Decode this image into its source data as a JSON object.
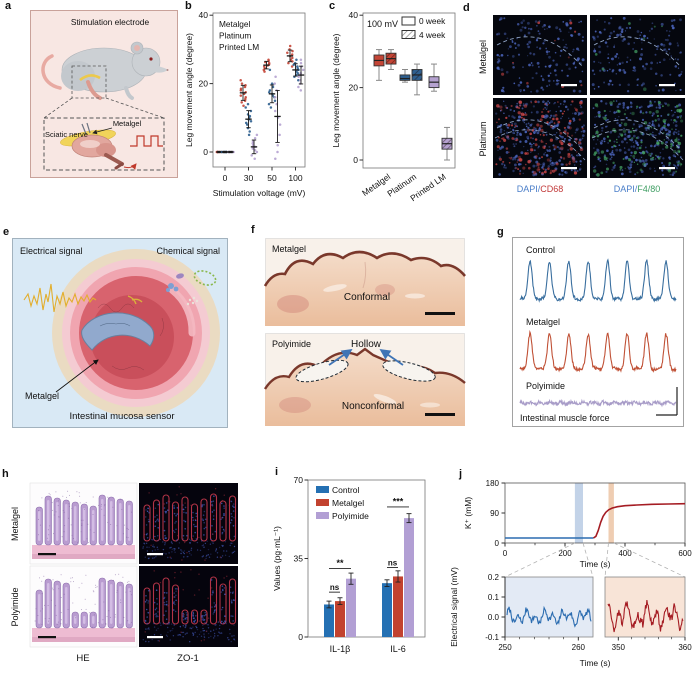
{
  "panel_letters": {
    "a": "a",
    "b": "b",
    "c": "c",
    "d": "d",
    "e": "e",
    "f": "f",
    "g": "g",
    "h": "h",
    "i": "i",
    "j": "j"
  },
  "panels": {
    "a": {
      "title": "Stimulation electrode",
      "metalgel": "Metalgel",
      "nerve": "Sciatic nerve"
    },
    "d": {
      "rows": [
        "Metalgel",
        "Platinum"
      ],
      "cap1_prefix": "DAPI/",
      "cap1_marker": "CD68",
      "cap2_prefix": "DAPI/",
      "cap2_marker": "F4/80",
      "dapi_color": "#4a7ec9",
      "cd68_color": "#c23a3a",
      "f480_color": "#3f9e63"
    },
    "e": {
      "electrical": "Electrical signal",
      "chemical": "Chemical signal",
      "metalgel": "Metalgel",
      "caption": "Intestinal mucosa sensor"
    },
    "f": {
      "top_label": "Metalgel",
      "top_caption": "Conformal",
      "bottom_label": "Polyimide",
      "hollow": "Hollow",
      "bottom_caption": "Nonconformal"
    },
    "g": {
      "caption": "Intestinal muscle force"
    },
    "h": {
      "rows": [
        "Metalgel",
        "Polyimide"
      ],
      "col1": "HE",
      "col2": "ZO-1",
      "col2_color": "#c23a3a"
    }
  },
  "chart_data": {
    "b": {
      "type": "scatter",
      "xlabel": "Stimulation voltage (mV)",
      "ylabel": "Leg movement angle (degree)",
      "x_categories": [
        0,
        30,
        50,
        100
      ],
      "y_ticks": [
        0,
        20,
        40
      ],
      "ylim": [
        -4,
        40
      ],
      "legend_position": "top-left",
      "series": [
        {
          "name": "Metalgel",
          "color": "#c44536",
          "points": [
            [
              0,
              0,
              0,
              0,
              0,
              0
            ],
            [
              13.5,
              14.5,
              15,
              15.5,
              16,
              16.5,
              17,
              17.5,
              18,
              18.5,
              19,
              19.5,
              20,
              21
            ],
            [
              23.5,
              24,
              24.5,
              25,
              25.3,
              25.6,
              26,
              26.3,
              26.6,
              27
            ],
            [
              25,
              26,
              26.5,
              27,
              27.5,
              28,
              28.5,
              29,
              29.5,
              30,
              31
            ]
          ],
          "mean": [
            0,
            17.3,
            25.4,
            28.1
          ],
          "sd": [
            0.2,
            2.2,
            1.1,
            1.7
          ]
        },
        {
          "name": "Platinum",
          "color": "#2e5f8f",
          "points": [
            [
              0,
              0,
              0,
              0,
              0,
              0
            ],
            [
              5,
              6,
              7,
              8,
              8.5,
              9,
              9.5,
              10,
              10.5,
              11,
              12,
              13,
              14
            ],
            [
              13,
              14,
              15,
              16,
              16.5,
              17,
              17.5,
              18,
              19,
              20,
              24
            ],
            [
              21,
              22,
              22.5,
              23,
              23.5,
              24,
              24.5,
              25,
              25.5,
              26,
              27
            ]
          ],
          "mean": [
            0,
            9.6,
            17,
            24
          ],
          "sd": [
            0.2,
            2.5,
            2.6,
            1.8
          ]
        },
        {
          "name": "Printed LM",
          "color": "#b5a2d0",
          "points": [
            [
              0,
              0,
              0,
              0,
              0,
              0
            ],
            [
              -2,
              -1,
              0,
              0.5,
              1,
              1.5,
              2,
              2.5,
              3,
              4,
              5
            ],
            [
              -2,
              0,
              2,
              5,
              8,
              10,
              12,
              14,
              16,
              18,
              20,
              22
            ],
            [
              18,
              19,
              20,
              21,
              22,
              22.5,
              23,
              24,
              25,
              26,
              27
            ]
          ],
          "mean": [
            0,
            1.5,
            10.4,
            22.5
          ],
          "sd": [
            0.2,
            2,
            7.6,
            2.6
          ]
        }
      ]
    },
    "c": {
      "type": "box",
      "annotation": "100 mV",
      "ylabel": "Leg movement angle (degree)",
      "y_ticks": [
        0,
        20,
        40
      ],
      "ylim": [
        -2,
        40
      ],
      "legend": [
        "0 week",
        "4 week"
      ],
      "categories": [
        "Metalgel",
        "Platinum",
        "Printed LM"
      ],
      "colors": [
        "#c44536",
        "#2e5f8f",
        "#b5a2d0"
      ],
      "week0": [
        [
          22,
          26,
          27.5,
          29,
          30.5
        ],
        [
          21.5,
          22,
          22.5,
          23.5,
          25
        ],
        [
          19,
          20,
          21.5,
          23,
          26.5
        ]
      ],
      "week4": [
        [
          25,
          26.5,
          28,
          29.5,
          30.5
        ],
        [
          18,
          22,
          23.5,
          25,
          26.5
        ],
        [
          0,
          3,
          4.5,
          6,
          9
        ]
      ]
    },
    "g": {
      "type": "traces",
      "traces": [
        {
          "name": "Control",
          "color": "#3a6f9f",
          "peaks": 8,
          "peak_h": 38,
          "noise": 1.6
        },
        {
          "name": "Metalgel",
          "color": "#c05136",
          "peaks": 8,
          "peak_h": 35,
          "noise": 1.6
        },
        {
          "name": "Polyimide",
          "color": "#a89cc8",
          "peaks": 0,
          "peak_h": 0,
          "noise": 1.8
        }
      ]
    },
    "i": {
      "type": "bar",
      "ylabel": "Values (pg·mL⁻¹)",
      "y_ticks": [
        0,
        35,
        70
      ],
      "ylim": [
        0,
        70
      ],
      "categories": [
        "IL-1β",
        "IL-6"
      ],
      "series": [
        {
          "name": "Control",
          "color": "#2470b3",
          "values": [
            14.5,
            24
          ],
          "errors": [
            1.5,
            1.5
          ]
        },
        {
          "name": "Metalgel",
          "color": "#c2422f",
          "values": [
            16,
            27
          ],
          "errors": [
            1.5,
            2.5
          ]
        },
        {
          "name": "Polyimide",
          "color": "#b29fd4",
          "values": [
            26,
            53
          ],
          "errors": [
            2.5,
            2
          ]
        }
      ],
      "sig": [
        {
          "pair_label": "ns",
          "pair_y": 20,
          "overall_label": "**",
          "overall_y": 30.5
        },
        {
          "pair_label": "ns",
          "pair_y": 31,
          "overall_label": "***",
          "overall_y": 58
        }
      ]
    },
    "j_top": {
      "type": "line",
      "ylabel": "K⁺ (mM)",
      "xlabel": "Time (s)",
      "x_ticks": [
        0,
        200,
        400,
        600
      ],
      "y_ticks": [
        0,
        90,
        180
      ],
      "xlim": [
        0,
        600
      ],
      "ylim": [
        0,
        180
      ],
      "baseline": {
        "color": "#2b6cb0",
        "value": 15,
        "t_end": 295
      },
      "curve": {
        "color": "#a51c23",
        "points": [
          [
            295,
            15
          ],
          [
            303,
            20
          ],
          [
            311,
            38
          ],
          [
            319,
            62
          ],
          [
            327,
            80
          ],
          [
            336,
            92
          ],
          [
            346,
            100
          ],
          [
            358,
            105
          ],
          [
            375,
            109
          ],
          [
            400,
            112
          ],
          [
            440,
            114
          ],
          [
            490,
            116
          ],
          [
            545,
            117
          ],
          [
            600,
            118
          ]
        ]
      },
      "bands": [
        {
          "t0": 233,
          "t1": 260,
          "color": "#b8cbe4"
        },
        {
          "t0": 345,
          "t1": 363,
          "color": "#ecc4a4"
        }
      ]
    },
    "j_bottom": {
      "ylabel": "Electrical signal (mV)",
      "xlabel": "Time (s)",
      "y_ticks": [
        0.2,
        0.1,
        0.0,
        -0.1
      ],
      "ylim": [
        -0.1,
        0.2
      ],
      "insets": [
        {
          "x_ticks": [
            250,
            260
          ],
          "x_range": [
            250,
            262
          ],
          "bg": "#e3eaf5",
          "color": "#2b6cb0",
          "amp": 0.04
        },
        {
          "x_ticks": [
            350,
            360
          ],
          "x_range": [
            348,
            360
          ],
          "bg": "#f8e4d7",
          "color": "#a51c23",
          "amp": 0.06
        }
      ]
    }
  }
}
